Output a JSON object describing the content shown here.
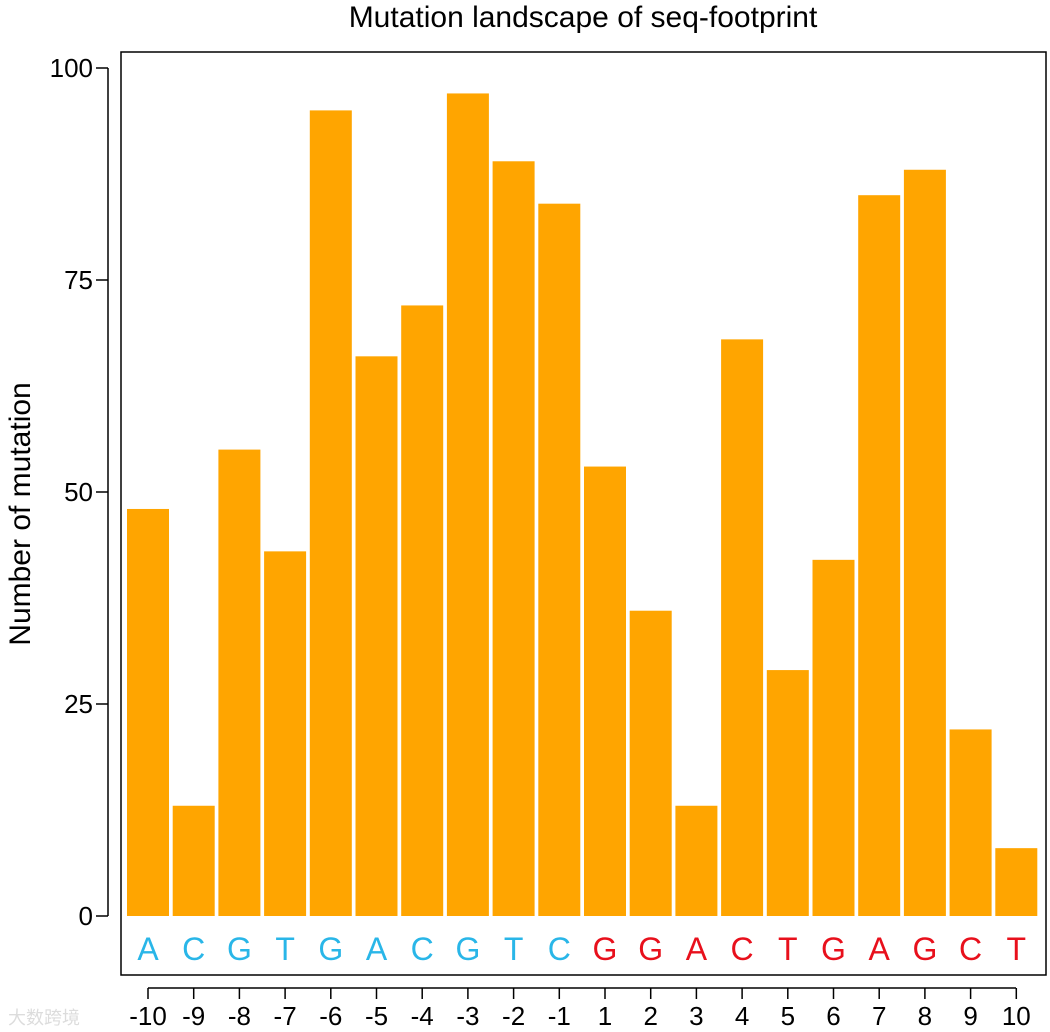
{
  "chart_data": {
    "type": "bar",
    "title": "Mutation landscape of seq-footprint",
    "xlabel": "",
    "ylabel": "Number of mutation",
    "ylim": [
      0,
      100
    ],
    "yticks": [
      0,
      25,
      50,
      75,
      100
    ],
    "ytick_labels": [
      "0",
      "25",
      "50",
      "75",
      "100"
    ],
    "categories": [
      "-10",
      "-9",
      "-8",
      "-7",
      "-6",
      "-5",
      "-4",
      "-3",
      "-2",
      "-1",
      "1",
      "2",
      "3",
      "4",
      "5",
      "6",
      "7",
      "8",
      "9",
      "10"
    ],
    "values": [
      48,
      13,
      55,
      43,
      95,
      66,
      72,
      97,
      89,
      84,
      53,
      36,
      13,
      68,
      29,
      42,
      85,
      88,
      22,
      8
    ],
    "bases": [
      "A",
      "C",
      "G",
      "T",
      "G",
      "A",
      "C",
      "G",
      "T",
      "C",
      "G",
      "G",
      "A",
      "C",
      "T",
      "G",
      "A",
      "G",
      "C",
      "T"
    ],
    "bar_color": "#FFA500",
    "upstream_base_color": "#29B6E8",
    "downstream_base_color": "#E8101C",
    "grid": false,
    "legend": "none"
  },
  "watermark": "大数跨境"
}
